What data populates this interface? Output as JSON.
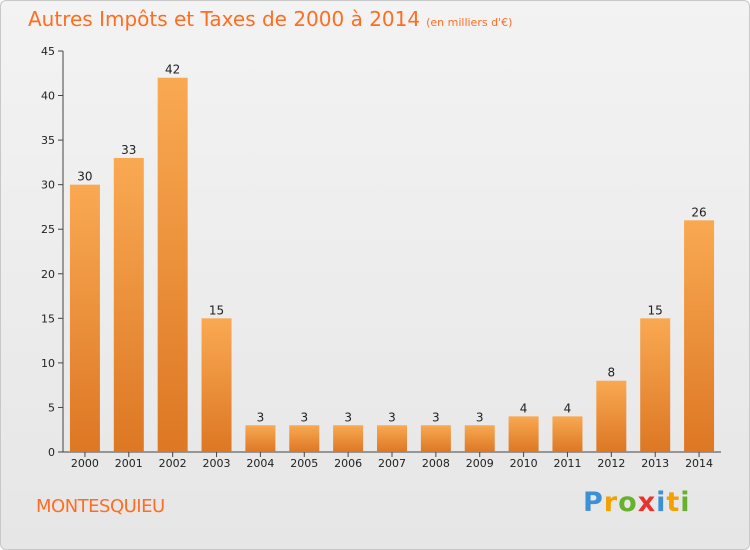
{
  "header": {
    "title": "Autres Impôts et Taxes de 2000 à 2014",
    "unit": "(en milliers d'€)"
  },
  "footer": {
    "city": "MONTESQUIEU",
    "logo": [
      "P",
      "r",
      "o",
      "x",
      "i",
      "t",
      "i"
    ]
  },
  "colors": {
    "bar_top": "#f9a952",
    "bar_bottom": "#dd7724",
    "accent": "#ff6d21"
  },
  "chart_data": {
    "type": "bar",
    "title": "Autres Impôts et Taxes de 2000 à 2014",
    "subtitle": "(en milliers d'€)",
    "xlabel": "",
    "ylabel": "",
    "categories": [
      "2000",
      "2001",
      "2002",
      "2003",
      "2004",
      "2005",
      "2006",
      "2007",
      "2008",
      "2009",
      "2010",
      "2011",
      "2012",
      "2013",
      "2014"
    ],
    "values": [
      30,
      33,
      42,
      15,
      3,
      3,
      3,
      3,
      3,
      3,
      4,
      4,
      8,
      15,
      26
    ],
    "ylim": [
      0,
      45
    ],
    "yticks": [
      0,
      5,
      10,
      15,
      20,
      25,
      30,
      35,
      40,
      45
    ],
    "grid": false,
    "legend": "none"
  }
}
